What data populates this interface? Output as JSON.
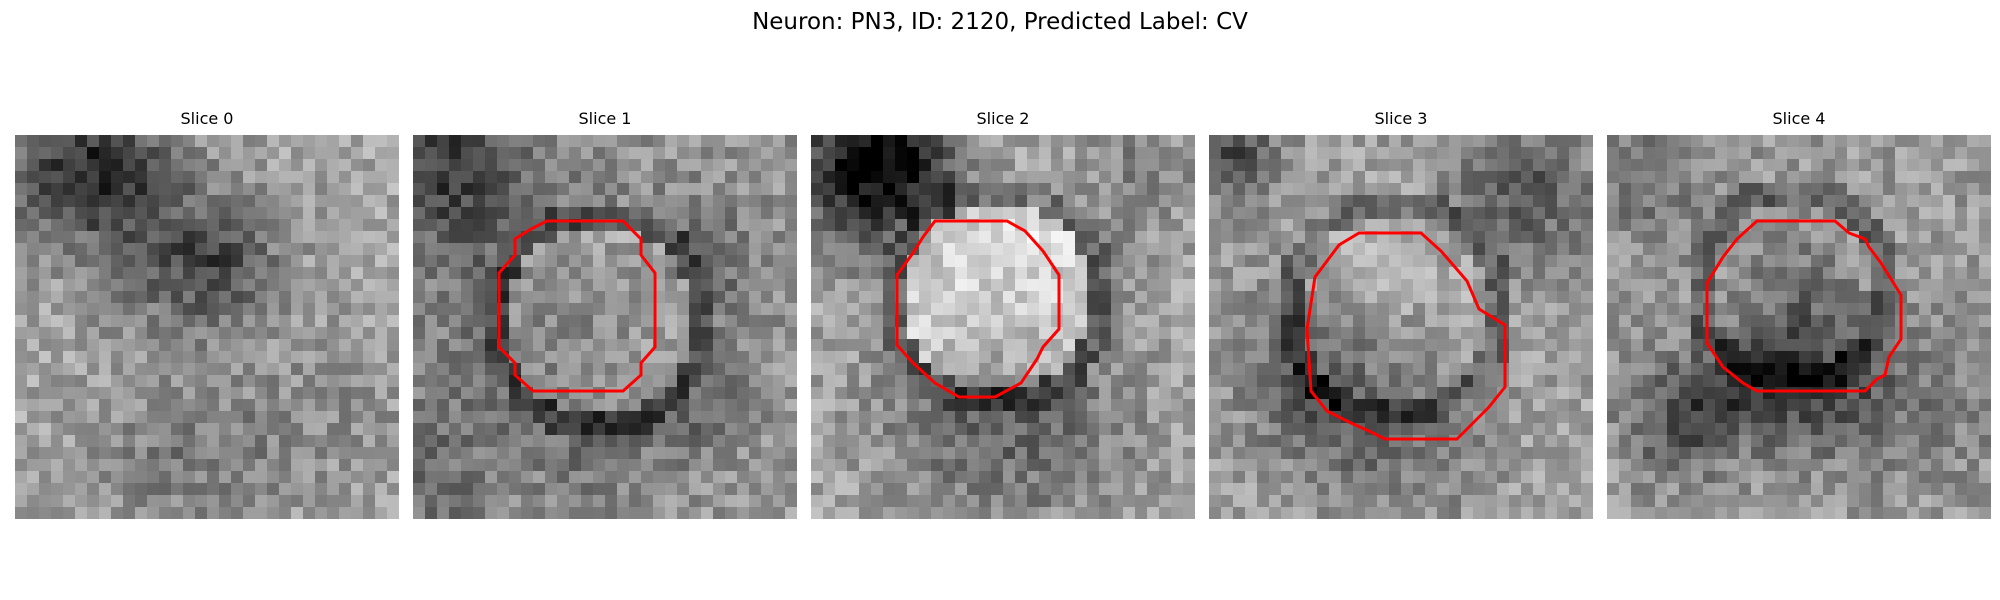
{
  "figure": {
    "title": "Neuron: PN3, ID: 2120, Predicted Label: CV"
  },
  "panels": [
    {
      "title": "Slice 0",
      "has_contour": false
    },
    {
      "title": "Slice 1",
      "has_contour": true
    },
    {
      "title": "Slice 2",
      "has_contour": true
    },
    {
      "title": "Slice 3",
      "has_contour": true
    },
    {
      "title": "Slice 4",
      "has_contour": true
    }
  ],
  "colors": {
    "contour": "#ff0000",
    "background": "#ffffff"
  },
  "image": {
    "colormap": "grayscale",
    "grid_cells": 32
  }
}
